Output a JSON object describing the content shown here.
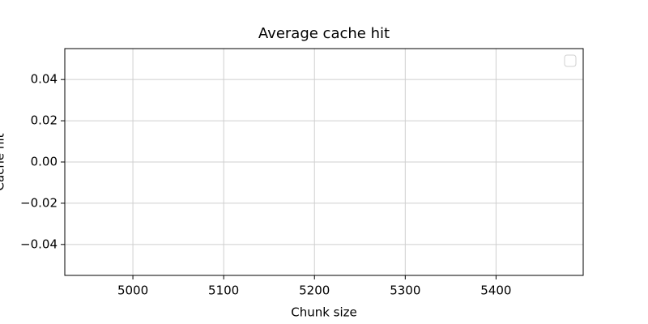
{
  "chart_data": {
    "type": "line",
    "title": "Average cache hit",
    "x_label": "Chunk size",
    "y_label": "Cache hit",
    "series": [],
    "xlim": [
      4925,
      5496
    ],
    "xticks": [
      5000,
      5100,
      5200,
      5300,
      5400
    ],
    "ylim": [
      -0.055,
      0.055
    ],
    "yticks": [
      {
        "value": -0.04,
        "label": "−0.04"
      },
      {
        "value": -0.02,
        "label": "−0.02"
      },
      {
        "value": 0,
        "label": "0.00"
      },
      {
        "value": 0.02,
        "label": "0.02"
      },
      {
        "value": 0.04,
        "label": "0.04"
      }
    ],
    "grid": true,
    "legend": "upper right"
  }
}
